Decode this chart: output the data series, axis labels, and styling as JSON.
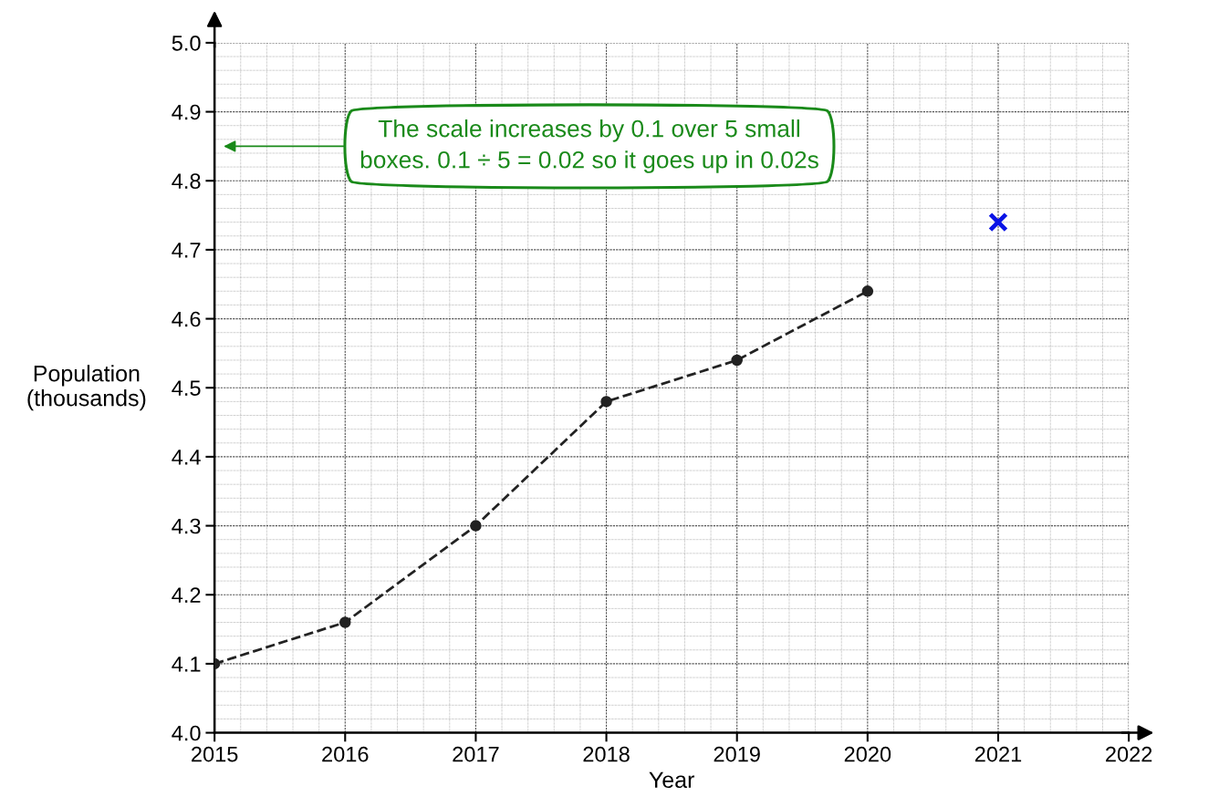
{
  "chart_data": {
    "type": "line",
    "xlabel": "Year",
    "ylabel": "Population\n(thousands)",
    "x": [
      2015,
      2016,
      2017,
      2018,
      2019,
      2020
    ],
    "series": [
      {
        "color": "#222222",
        "values": [
          4.1,
          4.16,
          4.3,
          4.48,
          4.54,
          4.64
        ],
        "marker": "circle",
        "line_style": "dashed"
      },
      {
        "type": "scatter",
        "color": "#0a14e6",
        "x": [
          2021
        ],
        "values": [
          4.74
        ],
        "marker": "cross"
      }
    ],
    "xlim": [
      2015,
      2022
    ],
    "xticks": [
      2015,
      2016,
      2017,
      2018,
      2019,
      2020,
      2021,
      2022
    ],
    "ylim": [
      4.0,
      5.0
    ],
    "yticks": [
      {
        "value": 4.0,
        "label": "4.0"
      },
      4.1,
      4.2,
      4.3,
      4.4,
      4.5,
      4.6,
      4.7,
      4.8,
      4.9,
      {
        "value": 5.0,
        "label": "5.0"
      }
    ],
    "grid": true,
    "annotations": [
      "The scale increases by 0.1 over 5 small\nboxes. 0.1 ÷ 5 = 0.02 so it goes up in 0.02s"
    ]
  }
}
